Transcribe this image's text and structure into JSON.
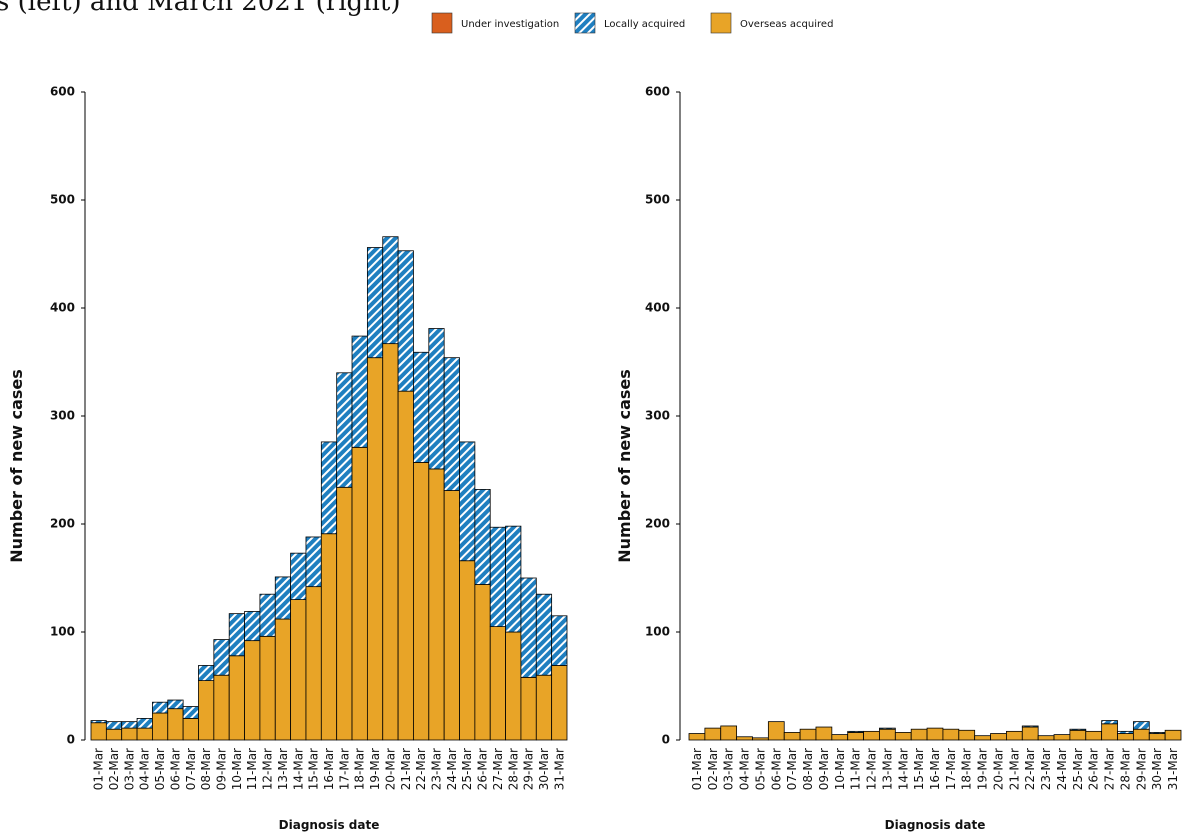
{
  "title": "s (left) and March 2021 (right)",
  "chart_data": [
    {
      "type": "stacked-bar",
      "ylabel": "Number of new cases",
      "xlabel": "Diagnosis date",
      "categories": [
        "01-Mar",
        "02-Mar",
        "03-Mar",
        "04-Mar",
        "05-Mar",
        "06-Mar",
        "07-Mar",
        "08-Mar",
        "09-Mar",
        "10-Mar",
        "11-Mar",
        "12-Mar",
        "13-Mar",
        "14-Mar",
        "15-Mar",
        "16-Mar",
        "17-Mar",
        "18-Mar",
        "19-Mar",
        "20-Mar",
        "21-Mar",
        "22-Mar",
        "23-Mar",
        "24-Mar",
        "25-Mar",
        "26-Mar",
        "27-Mar",
        "28-Mar",
        "29-Mar",
        "30-Mar",
        "31-Mar"
      ],
      "series": [
        {
          "name": "Under investigation",
          "color": "#d95f1e",
          "values": [
            0,
            0,
            0,
            0,
            0,
            0,
            0,
            0,
            0,
            0,
            0,
            0,
            0,
            0,
            0,
            0,
            0,
            0,
            0,
            0,
            0,
            0,
            0,
            0,
            0,
            0,
            0,
            0,
            0,
            0,
            0
          ]
        },
        {
          "name": "Locally acquired",
          "color": "#1f7fc0",
          "hatch": true,
          "values": [
            2,
            7,
            6,
            9,
            10,
            8,
            11,
            14,
            33,
            39,
            27,
            39,
            39,
            43,
            46,
            85,
            106,
            103,
            102,
            99,
            130,
            102,
            130,
            123,
            110,
            88,
            92,
            98,
            92,
            75,
            46
          ]
        },
        {
          "name": "Overseas acquired",
          "color": "#e8a427",
          "values": [
            16,
            10,
            11,
            11,
            25,
            29,
            20,
            55,
            60,
            78,
            92,
            96,
            112,
            130,
            142,
            191,
            234,
            271,
            354,
            367,
            323,
            257,
            251,
            231,
            166,
            144,
            105,
            100,
            58,
            60,
            69
          ]
        }
      ],
      "ylim": [
        0,
        600
      ],
      "yticks": [
        0,
        100,
        200,
        300,
        400,
        500,
        600
      ]
    },
    {
      "type": "stacked-bar",
      "ylabel": "Number of new cases",
      "xlabel": "Diagnosis date",
      "categories": [
        "01-Mar",
        "02-Mar",
        "03-Mar",
        "04-Mar",
        "05-Mar",
        "06-Mar",
        "07-Mar",
        "08-Mar",
        "09-Mar",
        "10-Mar",
        "11-Mar",
        "12-Mar",
        "13-Mar",
        "14-Mar",
        "15-Mar",
        "16-Mar",
        "17-Mar",
        "18-Mar",
        "19-Mar",
        "20-Mar",
        "21-Mar",
        "22-Mar",
        "23-Mar",
        "24-Mar",
        "25-Mar",
        "26-Mar",
        "27-Mar",
        "28-Mar",
        "29-Mar",
        "30-Mar",
        "31-Mar"
      ],
      "series": [
        {
          "values": [
            0,
            0,
            0,
            0,
            0,
            0,
            0,
            0,
            0,
            0,
            0,
            0,
            0,
            0,
            0,
            0,
            0,
            0,
            0,
            0,
            0,
            0,
            0,
            0,
            0,
            0,
            0,
            0,
            0,
            0,
            0
          ]
        },
        {
          "values": [
            0,
            0,
            0,
            0,
            0,
            0,
            0,
            0,
            0,
            0,
            1,
            0,
            1,
            0,
            0,
            0,
            0,
            0,
            0,
            0,
            0,
            1,
            0,
            0,
            1,
            0,
            3,
            2,
            7,
            1,
            0
          ]
        },
        {
          "values": [
            6,
            11,
            13,
            3,
            2,
            17,
            7,
            10,
            12,
            5,
            7,
            8,
            10,
            7,
            10,
            11,
            10,
            9,
            4,
            6,
            8,
            12,
            4,
            5,
            9,
            8,
            15,
            6,
            10,
            6,
            9
          ]
        }
      ],
      "ylim": [
        0,
        600
      ],
      "yticks": [
        0,
        100,
        200,
        300,
        400,
        500,
        600
      ]
    }
  ]
}
